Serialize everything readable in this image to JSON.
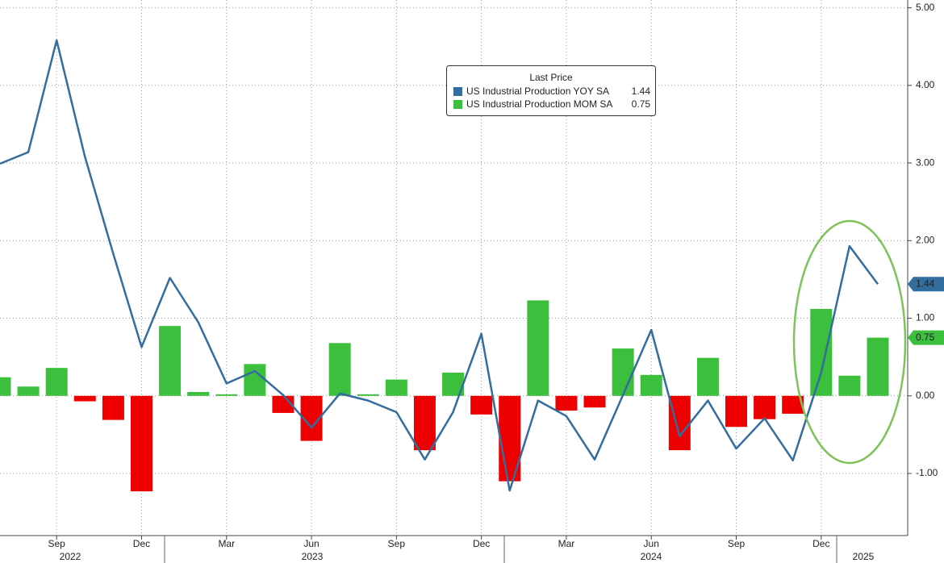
{
  "chart_data": {
    "type": "bar_line",
    "categories": [
      null,
      null,
      "Sep",
      null,
      null,
      "Dec",
      null,
      null,
      "Mar",
      null,
      null,
      "Jun",
      null,
      null,
      "Sep",
      null,
      null,
      "Dec",
      null,
      null,
      "Mar",
      null,
      null,
      "Jun",
      null,
      null,
      "Sep",
      null,
      null,
      "Dec",
      null,
      null
    ],
    "year_labels": [
      "2022",
      "2023",
      "2024",
      "2025"
    ],
    "legend_title": "Last Price",
    "series": [
      {
        "name": "US Industrial Production YOY SA",
        "type": "line",
        "color": "#336c9e",
        "values": [
          2.99,
          3.14,
          4.58,
          3.08,
          1.83,
          0.63,
          1.52,
          0.95,
          0.16,
          0.32,
          0.01,
          -0.41,
          0.03,
          -0.06,
          -0.21,
          -0.82,
          -0.21,
          0.8,
          -1.22,
          -0.06,
          -0.26,
          -0.82,
          0.01,
          0.85,
          -0.52,
          -0.06,
          -0.68,
          -0.29,
          -0.83,
          0.3,
          1.93,
          1.44
        ]
      },
      {
        "name": "US Industrial Production MOM SA",
        "type": "bar",
        "color": "#3cbf3c",
        "negative_color": "#ee0000",
        "values": [
          0.24,
          0.12,
          0.36,
          -0.07,
          -0.31,
          -1.23,
          0.9,
          0.05,
          0.02,
          0.41,
          -0.22,
          -0.58,
          0.68,
          0.02,
          0.21,
          -0.7,
          0.3,
          -0.24,
          -1.1,
          1.23,
          -0.19,
          -0.15,
          0.61,
          0.27,
          -0.7,
          0.49,
          -0.4,
          -0.3,
          -0.23,
          1.12,
          0.26,
          0.75
        ]
      }
    ],
    "ylim": [
      -1.8,
      5.1
    ],
    "yticks": [
      {
        "value": -1,
        "label": "-1.00"
      },
      {
        "value": 0,
        "label": "0.00"
      },
      {
        "value": 1,
        "label": "1.00"
      },
      {
        "value": 2,
        "label": "2.00"
      },
      {
        "value": 3,
        "label": "3.00"
      },
      {
        "value": 4,
        "label": "4.00"
      },
      {
        "value": 5,
        "label": "5.00"
      }
    ],
    "grid": true
  }
}
